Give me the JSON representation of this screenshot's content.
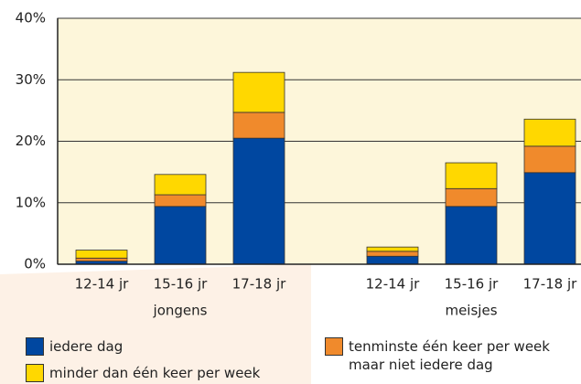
{
  "chart_data": {
    "type": "stacked_bar",
    "groups": [
      {
        "name": "jongens",
        "categories": [
          "12-14 jr",
          "15-16 jr",
          "17-18 jr"
        ]
      },
      {
        "name": "meisjes",
        "categories": [
          "12-14 jr",
          "15-16 jr",
          "17-18 jr"
        ]
      }
    ],
    "series": [
      {
        "name": "iedere dag",
        "color": "#0047a0",
        "values": [
          0.5,
          9.4,
          20.5,
          1.3,
          9.4,
          14.9
        ]
      },
      {
        "name": "tenminste één keer per week maar niet iedere dag",
        "color": "#f08a2c",
        "values": [
          0.5,
          1.9,
          4.2,
          0.8,
          2.9,
          4.3
        ]
      },
      {
        "name": "minder dan één keer per week",
        "color": "#ffd800",
        "values": [
          1.3,
          3.3,
          6.5,
          0.7,
          4.2,
          4.4
        ]
      }
    ],
    "ylim": [
      0,
      40
    ],
    "yticks": [
      {
        "value": 0,
        "label": "0%"
      },
      {
        "value": 10,
        "label": "10%"
      },
      {
        "value": 20,
        "label": "20%"
      },
      {
        "value": 30,
        "label": "30%"
      },
      {
        "value": 40,
        "label": "40%"
      }
    ],
    "grid": true
  }
}
